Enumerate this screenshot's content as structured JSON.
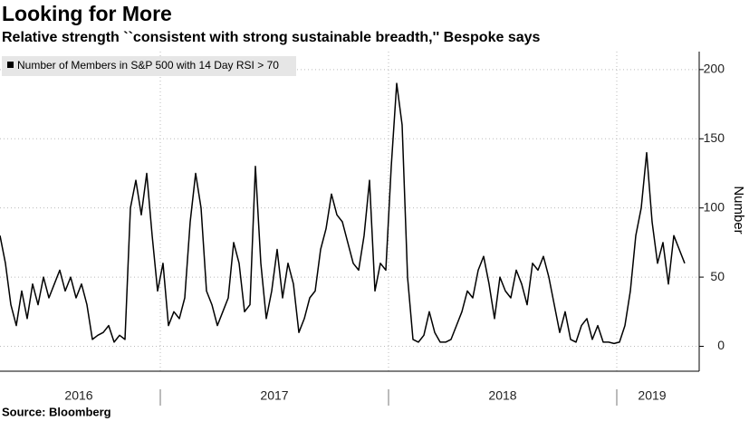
{
  "chart_data": {
    "type": "line",
    "title": "Looking for More",
    "subtitle": "Relative strength ``consistent with strong sustainable breadth,'' Bespoke says",
    "source": "Source: Bloomberg",
    "y_axis_label": "Number",
    "categories": [
      "2016",
      "2016",
      "2016",
      "2016",
      "2016",
      "2016",
      "2016",
      "2016",
      "2016",
      "2016",
      "2016",
      "2016",
      "2016",
      "2016",
      "2016",
      "2016",
      "2016",
      "2016",
      "2016",
      "2016",
      "2016",
      "2016",
      "2016",
      "2016",
      "2016",
      "2016",
      "2016",
      "2016",
      "2016",
      "2016",
      "2017",
      "2017",
      "2017",
      "2017",
      "2017",
      "2017",
      "2017",
      "2017",
      "2017",
      "2017",
      "2017",
      "2017",
      "2017",
      "2017",
      "2017",
      "2017",
      "2017",
      "2017",
      "2017",
      "2017",
      "2017",
      "2017",
      "2017",
      "2017",
      "2017",
      "2017",
      "2017",
      "2017",
      "2017",
      "2017",
      "2017",
      "2017",
      "2017",
      "2017",
      "2017",
      "2017",
      "2017",
      "2017",
      "2017",
      "2017",
      "2017",
      "2017",
      "2018",
      "2018",
      "2018",
      "2018",
      "2018",
      "2018",
      "2018",
      "2018",
      "2018",
      "2018",
      "2018",
      "2018",
      "2018",
      "2018",
      "2018",
      "2018",
      "2018",
      "2018",
      "2018",
      "2018",
      "2018",
      "2018",
      "2018",
      "2018",
      "2018",
      "2018",
      "2018",
      "2018",
      "2018",
      "2018",
      "2018",
      "2018",
      "2018",
      "2018",
      "2018",
      "2018",
      "2018",
      "2018",
      "2018",
      "2018",
      "2018",
      "2018",
      "2019",
      "2019",
      "2019",
      "2019",
      "2019",
      "2019",
      "2019",
      "2019",
      "2019",
      "2019",
      "2019",
      "2019",
      "2019"
    ],
    "series": [
      {
        "name": "Number of Members in S&P 500 with 14 Day RSI > 70",
        "color": "#000000",
        "values": [
          80,
          60,
          30,
          15,
          40,
          20,
          45,
          30,
          50,
          35,
          45,
          55,
          40,
          50,
          35,
          45,
          30,
          5,
          8,
          10,
          15,
          3,
          8,
          5,
          100,
          120,
          95,
          125,
          80,
          40,
          60,
          15,
          25,
          20,
          35,
          90,
          125,
          100,
          40,
          30,
          15,
          25,
          35,
          75,
          60,
          25,
          30,
          130,
          60,
          20,
          40,
          70,
          35,
          60,
          45,
          10,
          20,
          35,
          40,
          70,
          85,
          110,
          95,
          90,
          75,
          60,
          55,
          80,
          120,
          40,
          60,
          55,
          130,
          190,
          160,
          50,
          5,
          3,
          8,
          25,
          10,
          3,
          3,
          5,
          15,
          25,
          40,
          35,
          55,
          65,
          45,
          20,
          50,
          40,
          35,
          55,
          45,
          30,
          60,
          55,
          65,
          50,
          30,
          10,
          25,
          5,
          3,
          15,
          20,
          5,
          15,
          3,
          3,
          2,
          3,
          15,
          40,
          80,
          100,
          140,
          90,
          60,
          75,
          45,
          80,
          70,
          60
        ]
      }
    ],
    "ylim": [
      -18,
      213
    ],
    "yticks": [
      0,
      50,
      100,
      150,
      200
    ],
    "grid": true
  }
}
